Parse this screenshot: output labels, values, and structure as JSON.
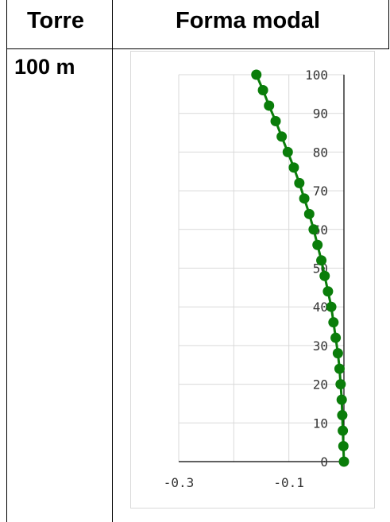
{
  "table": {
    "headers": [
      "Torre",
      "Forma modal"
    ],
    "rows": [
      {
        "label": "100 m"
      }
    ]
  },
  "chart_data": {
    "type": "scatter",
    "title": "",
    "xlabel": "",
    "ylabel": "",
    "xlim": [
      -0.3,
      0
    ],
    "ylim": [
      0,
      100
    ],
    "xticks": [
      "-0.3",
      "-0.1"
    ],
    "yticks": [
      "0",
      "10",
      "20",
      "30",
      "40",
      "50",
      "60",
      "70",
      "80",
      "90",
      "100"
    ],
    "grid": true,
    "legend": "none",
    "series": [
      {
        "color": "#0a7d0a",
        "points": [
          {
            "x": 0.0,
            "y": 0
          },
          {
            "x": -0.001,
            "y": 4
          },
          {
            "x": -0.002,
            "y": 8
          },
          {
            "x": -0.003,
            "y": 12
          },
          {
            "x": -0.004,
            "y": 16
          },
          {
            "x": -0.006,
            "y": 20
          },
          {
            "x": -0.008,
            "y": 24
          },
          {
            "x": -0.011,
            "y": 28
          },
          {
            "x": -0.015,
            "y": 32
          },
          {
            "x": -0.019,
            "y": 36
          },
          {
            "x": -0.023,
            "y": 40
          },
          {
            "x": -0.029,
            "y": 44
          },
          {
            "x": -0.035,
            "y": 48
          },
          {
            "x": -0.041,
            "y": 52
          },
          {
            "x": -0.048,
            "y": 56
          },
          {
            "x": -0.055,
            "y": 60
          },
          {
            "x": -0.063,
            "y": 64
          },
          {
            "x": -0.072,
            "y": 68
          },
          {
            "x": -0.081,
            "y": 72
          },
          {
            "x": -0.091,
            "y": 76
          },
          {
            "x": -0.102,
            "y": 80
          },
          {
            "x": -0.113,
            "y": 84
          },
          {
            "x": -0.124,
            "y": 88
          },
          {
            "x": -0.136,
            "y": 92
          },
          {
            "x": -0.147,
            "y": 96
          },
          {
            "x": -0.159,
            "y": 100
          }
        ]
      }
    ]
  }
}
